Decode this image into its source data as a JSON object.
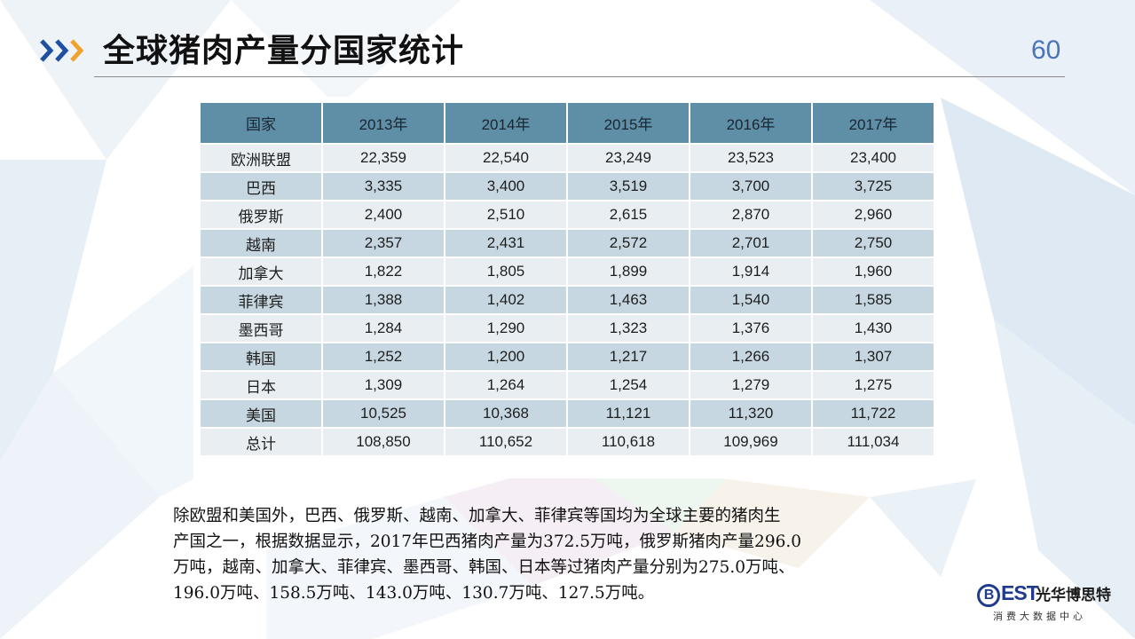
{
  "header": {
    "title": "全球猪肉产量分国家统计",
    "page_number": "60",
    "chevron_icon": "triple-chevron-right-icon",
    "colors": {
      "chevron_blue": "#1f4fa0",
      "chevron_orange": "#f0a22e",
      "page_number": "#4a74b5"
    }
  },
  "table": {
    "headers": [
      "国家",
      "2013年",
      "2014年",
      "2015年",
      "2016年",
      "2017年"
    ],
    "header_color": "#5f8fa7",
    "row_colors": [
      "#e8eef2",
      "#c7d7e1"
    ],
    "rows": [
      {
        "country": "欧洲联盟",
        "values": [
          "22,359",
          "22,540",
          "23,249",
          "23,523",
          "23,400"
        ]
      },
      {
        "country": "巴西",
        "values": [
          "3,335",
          "3,400",
          "3,519",
          "3,700",
          "3,725"
        ]
      },
      {
        "country": "俄罗斯",
        "values": [
          "2,400",
          "2,510",
          "2,615",
          "2,870",
          "2,960"
        ]
      },
      {
        "country": "越南",
        "values": [
          "2,357",
          "2,431",
          "2,572",
          "2,701",
          "2,750"
        ]
      },
      {
        "country": "加拿大",
        "values": [
          "1,822",
          "1,805",
          "1,899",
          "1,914",
          "1,960"
        ]
      },
      {
        "country": "菲律宾",
        "values": [
          "1,388",
          "1,402",
          "1,463",
          "1,540",
          "1,585"
        ]
      },
      {
        "country": "墨西哥",
        "values": [
          "1,284",
          "1,290",
          "1,323",
          "1,376",
          "1,430"
        ]
      },
      {
        "country": "韩国",
        "values": [
          "1,252",
          "1,200",
          "1,217",
          "1,266",
          "1,307"
        ]
      },
      {
        "country": "日本",
        "values": [
          "1,309",
          "1,264",
          "1,254",
          "1,279",
          "1,275"
        ]
      },
      {
        "country": "美国",
        "values": [
          "10,525",
          "10,368",
          "11,121",
          "11,320",
          "11,722"
        ]
      },
      {
        "country": "总计",
        "values": [
          "108,850",
          "110,652",
          "110,618",
          "109,969",
          "111,034"
        ]
      }
    ]
  },
  "paragraph": {
    "lines": [
      "除欧盟和美国外，巴西、俄罗斯、越南、加拿大、菲律宾等国均为全球主要的猪肉生",
      "产国之一，根据数据显示，2017年巴西猪肉产量为372.5万吨，俄罗斯猪肉产量296.0",
      "万吨，越南、加拿大、菲律宾、墨西哥、韩国、日本等过猪肉产量分别为275.0万吨、",
      "196.0万吨、158.5万吨、143.0万吨、130.7万吨、127.5万吨。"
    ]
  },
  "logo": {
    "mark_letter": "B",
    "mark_text": "EST",
    "cn_name": "光华博思特",
    "subtitle": "消费大数据中心",
    "color": "#1f3c8c"
  }
}
